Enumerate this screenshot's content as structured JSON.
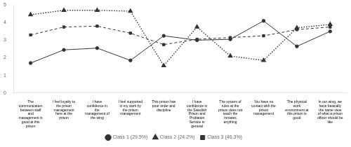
{
  "chart_data": {
    "type": "line",
    "categories": [
      "The\ncommunication\nbetween staff\nand\nmanagement is\ngood at this\nprison",
      "I feel loyalty to\nthe prison\nmanagement\nhere at the\nprison",
      "I have\nconfidence in\nthe\nmanagement of\nthe wing",
      "I feel supported\nin my work by\nthe prison\nmanagement",
      "This prison has\npoor order and\ndiscipline",
      "I have\nconfidence in\nthe Swedish\nPrison and\nProbation\nService in\ngeneral",
      "The system of\nrules at the\nprison does not\nteach the\ninmates\nanything",
      "You have no\ncontact with the\nprison\nmanagement",
      "The physical\nwork\nenvironment at\nthis prison is\ngood",
      "In our wing, we\nhave basically\nthe same view\nof what a prison\nofficer should be\nlike"
    ],
    "series": [
      {
        "name": "Class 1 (29.5%)",
        "color": "#333333",
        "marker": "circle",
        "line_style": "solid",
        "values": [
          1.7,
          2.45,
          2.55,
          1.85,
          3.25,
          3.0,
          3.05,
          4.1,
          2.65,
          3.5
        ]
      },
      {
        "name": "Class 2 (24.2%)",
        "color": "#333333",
        "marker": "triangle",
        "line_style": "dotted",
        "values": [
          4.45,
          4.7,
          4.7,
          4.65,
          1.55,
          3.75,
          2.1,
          1.85,
          3.7,
          3.9
        ]
      },
      {
        "name": "Class 3 (46.3%)",
        "color": "#333333",
        "marker": "square",
        "line_style": "dashed",
        "values": [
          3.3,
          3.75,
          3.8,
          3.4,
          2.75,
          3.05,
          3.15,
          3.25,
          3.6,
          3.75
        ]
      }
    ],
    "ylim": [
      0,
      5
    ],
    "yticks": [
      0,
      1,
      2,
      3,
      4,
      5
    ],
    "grid": false,
    "legend": "bottom"
  }
}
